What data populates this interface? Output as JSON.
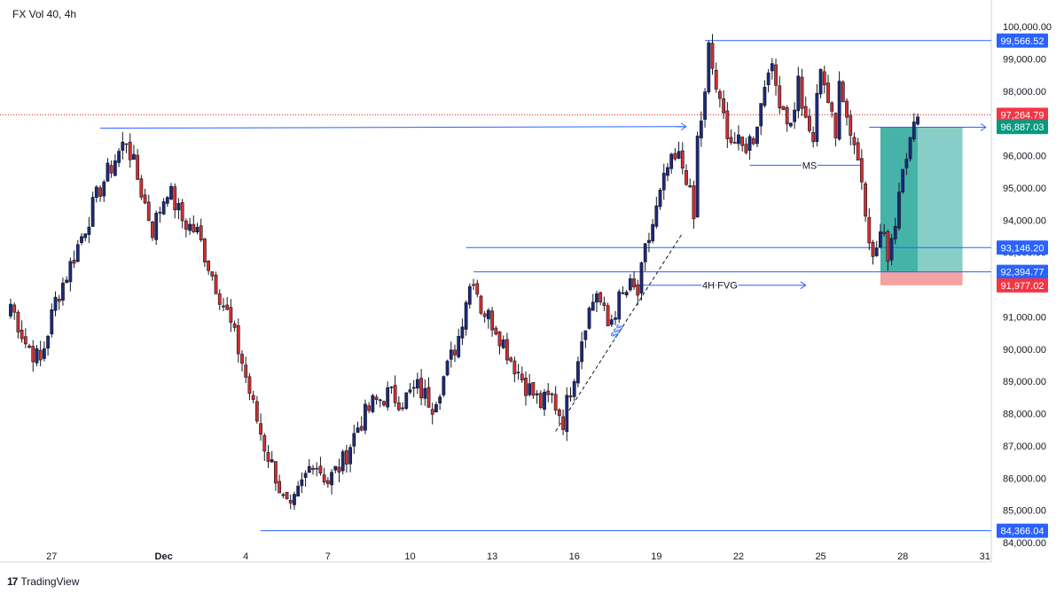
{
  "header": {
    "title": "FX Vol 40, 4h"
  },
  "footer": {
    "brand": "TradingView",
    "logo_icon": "tradingview-logo-icon"
  },
  "colors": {
    "up": "#1c2a7a",
    "down": "#d32f2f",
    "line": "#2962ff",
    "text": "#131722",
    "grid_axis_text": "#131722",
    "target_zone": "#26a69a",
    "stop_zone": "#f28b8b"
  },
  "chart_data": {
    "type": "candlestick",
    "title": "FX Vol 40, 4h",
    "xlabel": "",
    "ylabel": "",
    "ylim": [
      84000,
      100000
    ],
    "y_ticks": [
      "100,000.00",
      "99,000.00",
      "98,000.00",
      "97,000.00",
      "96,000.00",
      "95,000.00",
      "94,000.00",
      "93,000.00",
      "92,000.00",
      "91,000.00",
      "90,000.00",
      "89,000.00",
      "88,000.00",
      "87,000.00",
      "86,000.00",
      "85,000.00",
      "84,000.00"
    ],
    "x_ticks": [
      "27",
      "Dec",
      "4",
      "7",
      "10",
      "13",
      "16",
      "19",
      "22",
      "25",
      "28",
      "31"
    ],
    "price_labels": [
      {
        "label": "99,566.52",
        "value": 99566.52,
        "style": "blue"
      },
      {
        "label": "97,264.79",
        "value": 97264.79,
        "style": "red"
      },
      {
        "label": "96,887.03",
        "value": 96887.03,
        "style": "green"
      },
      {
        "label": "93,146.20",
        "value": 93146.2,
        "style": "blue"
      },
      {
        "label": "92,394.77",
        "value": 92394.77,
        "style": "blue"
      },
      {
        "label": "91,977.02",
        "value": 91977.02,
        "style": "red"
      },
      {
        "label": "84,366.04",
        "value": 84366.04,
        "style": "blue"
      }
    ],
    "annotations": [
      {
        "text": "MS"
      },
      {
        "text": "4H FVG"
      },
      {
        "text": "$$$"
      }
    ],
    "levels": {
      "high_line": 96800,
      "high_line_end": 96887.03,
      "ms_level": 95700,
      "resistance": 99566.52,
      "liquidity": 93146.2,
      "fvg": 92394.77,
      "low": 84366.04,
      "current": 97264.79
    },
    "position": {
      "entry": 96887.03,
      "target": 92394.77,
      "stop": 91977.02
    },
    "candles_anchor_path": [
      [
        0,
        91400
      ],
      [
        4,
        90200
      ],
      [
        8,
        89600
      ],
      [
        12,
        91500
      ],
      [
        16,
        92600
      ],
      [
        20,
        93800
      ],
      [
        24,
        95000
      ],
      [
        28,
        95900
      ],
      [
        31,
        96500
      ],
      [
        34,
        95300
      ],
      [
        38,
        93700
      ],
      [
        42,
        95000
      ],
      [
        46,
        94000
      ],
      [
        50,
        93600
      ],
      [
        54,
        92300
      ],
      [
        58,
        91100
      ],
      [
        62,
        89600
      ],
      [
        65,
        88200
      ],
      [
        68,
        87000
      ],
      [
        71,
        86100
      ],
      [
        73,
        85300
      ],
      [
        75,
        84900
      ],
      [
        77,
        85500
      ],
      [
        81,
        86600
      ],
      [
        85,
        85900
      ],
      [
        89,
        86500
      ],
      [
        93,
        87600
      ],
      [
        97,
        88300
      ],
      [
        101,
        88600
      ],
      [
        105,
        88400
      ],
      [
        109,
        88800
      ],
      [
        113,
        88300
      ],
      [
        117,
        89400
      ],
      [
        120,
        90400
      ],
      [
        122,
        91600
      ],
      [
        124,
        92300
      ],
      [
        126,
        91300
      ],
      [
        130,
        90700
      ],
      [
        134,
        89700
      ],
      [
        138,
        88900
      ],
      [
        142,
        88300
      ],
      [
        145,
        88500
      ],
      [
        148,
        87800
      ],
      [
        151,
        89300
      ],
      [
        154,
        90900
      ],
      [
        157,
        91800
      ],
      [
        160,
        90700
      ],
      [
        163,
        91500
      ],
      [
        166,
        91900
      ],
      [
        168,
        91700
      ],
      [
        170,
        93000
      ],
      [
        173,
        94300
      ],
      [
        176,
        95600
      ],
      [
        179,
        95900
      ],
      [
        181,
        95400
      ],
      [
        183,
        94000
      ],
      [
        184,
        96500
      ],
      [
        186,
        97800
      ],
      [
        187,
        99300
      ],
      [
        190,
        97500
      ],
      [
        193,
        96500
      ],
      [
        196,
        96200
      ],
      [
        199,
        96600
      ],
      [
        201,
        97600
      ],
      [
        203,
        98900
      ],
      [
        206,
        97800
      ],
      [
        209,
        96900
      ],
      [
        211,
        98300
      ],
      [
        213,
        96900
      ],
      [
        215,
        96500
      ],
      [
        217,
        98900
      ],
      [
        219,
        97700
      ],
      [
        221,
        96500
      ],
      [
        222,
        98600
      ],
      [
        224,
        97200
      ],
      [
        226,
        96400
      ],
      [
        228,
        95300
      ],
      [
        230,
        93600
      ],
      [
        231,
        92700
      ],
      [
        233,
        93600
      ],
      [
        235,
        93000
      ],
      [
        237,
        94000
      ],
      [
        239,
        95900
      ],
      [
        241,
        96400
      ],
      [
        243,
        97200
      ]
    ]
  }
}
